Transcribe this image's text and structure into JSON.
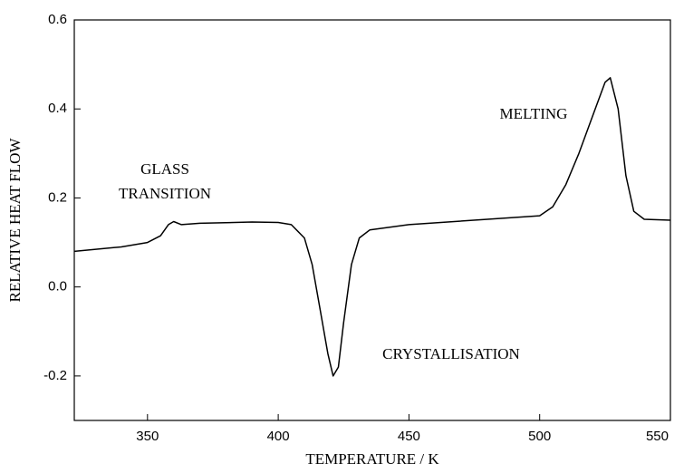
{
  "chart_data": {
    "type": "line",
    "x_label": "TEMPERATURE / K",
    "y_label": "RELATIVE HEAT FLOW",
    "annotations": [
      "GLASS",
      "TRANSITION",
      "CRYSTALLISATION",
      "MELTING"
    ],
    "x": [
      322,
      340,
      350,
      355,
      358,
      360,
      363,
      370,
      390,
      400,
      405,
      410,
      413,
      416,
      419,
      421,
      423,
      425,
      428,
      431,
      435,
      450,
      480,
      500,
      505,
      510,
      515,
      520,
      525,
      527,
      530,
      533,
      536,
      540,
      550
    ],
    "series": [
      {
        "color": "#000000",
        "values": [
          0.08,
          0.09,
          0.1,
          0.115,
          0.14,
          0.147,
          0.14,
          0.143,
          0.146,
          0.145,
          0.14,
          0.11,
          0.05,
          -0.05,
          -0.15,
          -0.2,
          -0.18,
          -0.08,
          0.05,
          0.11,
          0.128,
          0.14,
          0.152,
          0.16,
          0.18,
          0.23,
          0.3,
          0.38,
          0.46,
          0.47,
          0.4,
          0.25,
          0.17,
          0.152,
          0.15
        ]
      }
    ],
    "xlim": [
      322,
      550
    ],
    "xticks": [
      350,
      400,
      450,
      500,
      550
    ],
    "ylim": [
      -0.3,
      0.6
    ],
    "yticks": [
      {
        "value": -0.2,
        "label": "-0.2"
      },
      {
        "value": 0,
        "label": "0.0"
      },
      {
        "value": 0.2,
        "label": "0.2"
      },
      {
        "value": 0.4,
        "label": "0.4"
      },
      {
        "value": 0.6,
        "label": "0.6"
      }
    ],
    "grid": false
  }
}
